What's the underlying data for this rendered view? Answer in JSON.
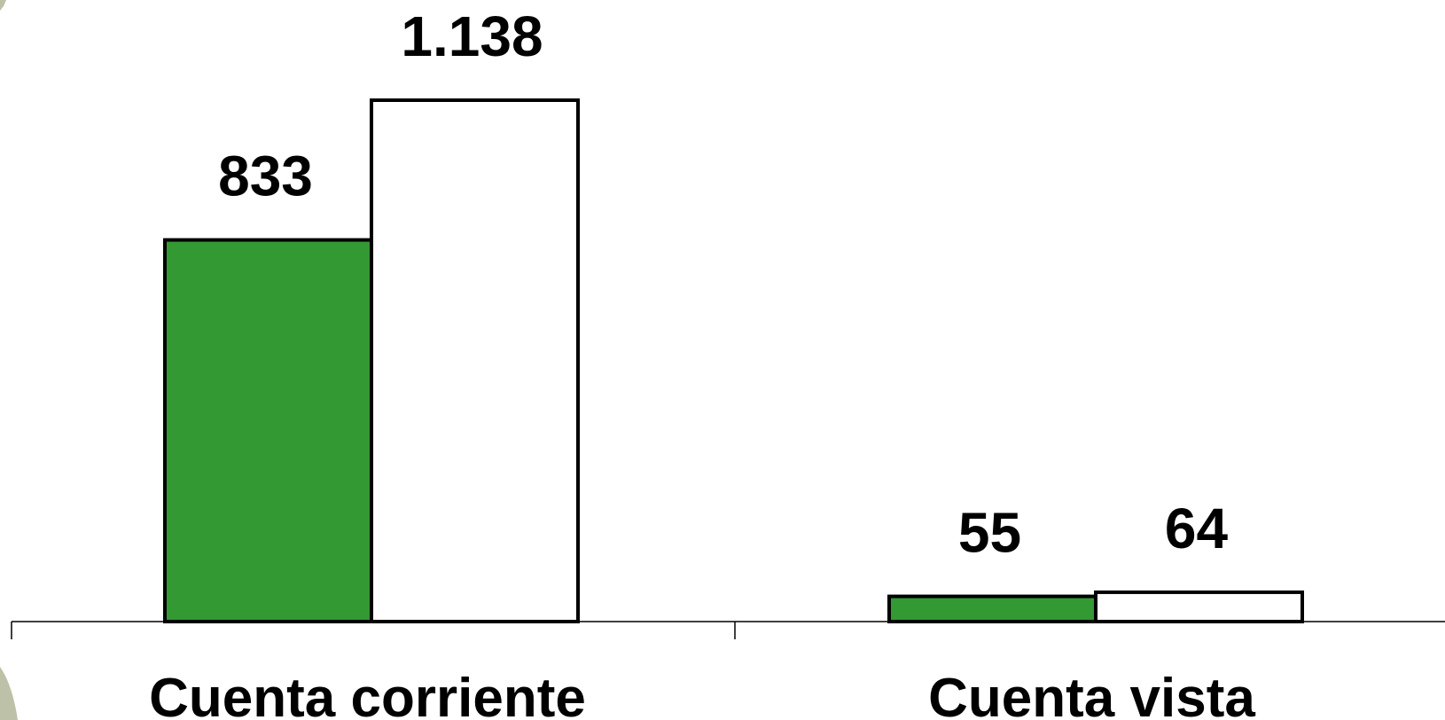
{
  "chart_data": {
    "type": "bar",
    "title": "",
    "xlabel": "",
    "ylabel": "",
    "categories": [
      "Cuenta corriente",
      "Cuenta vista"
    ],
    "series": [
      {
        "values": [
          833,
          55
        ],
        "value_labels": [
          "833",
          "55"
        ],
        "color": "#339933"
      },
      {
        "values": [
          1138,
          64
        ],
        "value_labels": [
          "1.138",
          "64"
        ],
        "color": "#ffffff"
      }
    ],
    "ylim": [
      0,
      1138
    ],
    "legend": "none",
    "grid": false
  }
}
